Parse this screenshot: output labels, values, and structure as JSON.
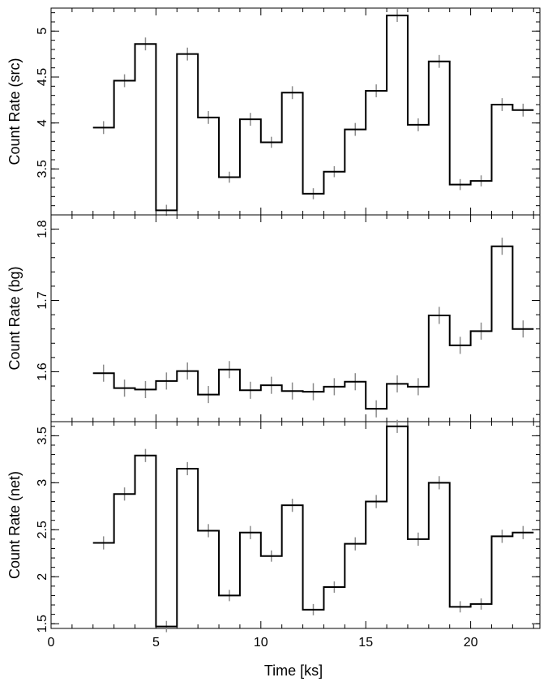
{
  "chart_data": {
    "type": "line",
    "xlabel": "Time [ks]",
    "xlim": [
      0,
      23.3
    ],
    "x_ticks": [
      0,
      5,
      10,
      15,
      20
    ],
    "x_tick_labels": [
      "0",
      "5",
      "10",
      "15",
      "20"
    ],
    "bin_edges": [
      2,
      3,
      4,
      5,
      6,
      7,
      8,
      9,
      10,
      11,
      12,
      13,
      14,
      15,
      16,
      17,
      18,
      19,
      20,
      21,
      22,
      23
    ],
    "bin_centers": [
      2.5,
      3.5,
      4.5,
      5.5,
      6.5,
      7.5,
      8.5,
      9.5,
      10.5,
      11.5,
      12.5,
      13.5,
      14.5,
      15.5,
      16.5,
      17.5,
      18.5,
      19.5,
      20.5,
      21.5,
      22.5
    ],
    "panels": [
      {
        "ylabel": "Count Rate (src)",
        "ylim": [
          3.0,
          5.25
        ],
        "y_ticks": [
          3.0,
          3.5,
          4.0,
          4.5,
          5.0
        ],
        "y_tick_labels": [
          "",
          "3.5",
          "4",
          "4.5",
          "5"
        ],
        "y_minor_step": 0.1,
        "values": [
          3.95,
          4.46,
          4.86,
          3.05,
          4.75,
          4.06,
          3.41,
          4.04,
          3.79,
          4.33,
          3.23,
          3.47,
          3.93,
          4.35,
          5.17,
          3.98,
          4.67,
          3.33,
          3.37,
          4.2,
          4.14
        ],
        "errors": [
          0.07,
          0.07,
          0.07,
          0.06,
          0.07,
          0.07,
          0.06,
          0.07,
          0.06,
          0.07,
          0.06,
          0.06,
          0.07,
          0.07,
          0.07,
          0.07,
          0.07,
          0.06,
          0.06,
          0.07,
          0.07
        ]
      },
      {
        "ylabel": "Count Rate (bg)",
        "ylim": [
          1.53,
          1.82
        ],
        "y_ticks": [
          1.6,
          1.7,
          1.8
        ],
        "y_tick_labels": [
          "1.6",
          "1.7",
          "1.8"
        ],
        "y_minor_step": 0.02,
        "values": [
          1.598,
          1.577,
          1.575,
          1.587,
          1.601,
          1.568,
          1.603,
          1.574,
          1.581,
          1.573,
          1.572,
          1.579,
          1.586,
          1.548,
          1.583,
          1.579,
          1.679,
          1.637,
          1.657,
          1.776,
          1.66
        ],
        "errors": [
          0.012,
          0.012,
          0.012,
          0.012,
          0.012,
          0.012,
          0.012,
          0.012,
          0.012,
          0.012,
          0.012,
          0.012,
          0.012,
          0.012,
          0.012,
          0.012,
          0.012,
          0.012,
          0.012,
          0.012,
          0.012
        ]
      },
      {
        "ylabel": "Count Rate (net)",
        "ylim": [
          1.45,
          3.65
        ],
        "y_ticks": [
          1.5,
          2.0,
          2.5,
          3.0,
          3.5
        ],
        "y_tick_labels": [
          "1.5",
          "2",
          "2.5",
          "3",
          "3.5"
        ],
        "y_minor_step": 0.1,
        "values": [
          2.36,
          2.88,
          3.29,
          1.47,
          3.15,
          2.49,
          1.8,
          2.47,
          2.22,
          2.76,
          1.65,
          1.89,
          2.35,
          2.8,
          3.6,
          2.4,
          3.0,
          1.68,
          1.71,
          2.43,
          2.47
        ],
        "errors": [
          0.07,
          0.07,
          0.07,
          0.06,
          0.07,
          0.07,
          0.06,
          0.07,
          0.06,
          0.07,
          0.06,
          0.06,
          0.07,
          0.07,
          0.07,
          0.07,
          0.07,
          0.06,
          0.06,
          0.07,
          0.07
        ]
      }
    ],
    "grid": false,
    "line_color": "#000000",
    "error_color": "#8c8c8c"
  }
}
